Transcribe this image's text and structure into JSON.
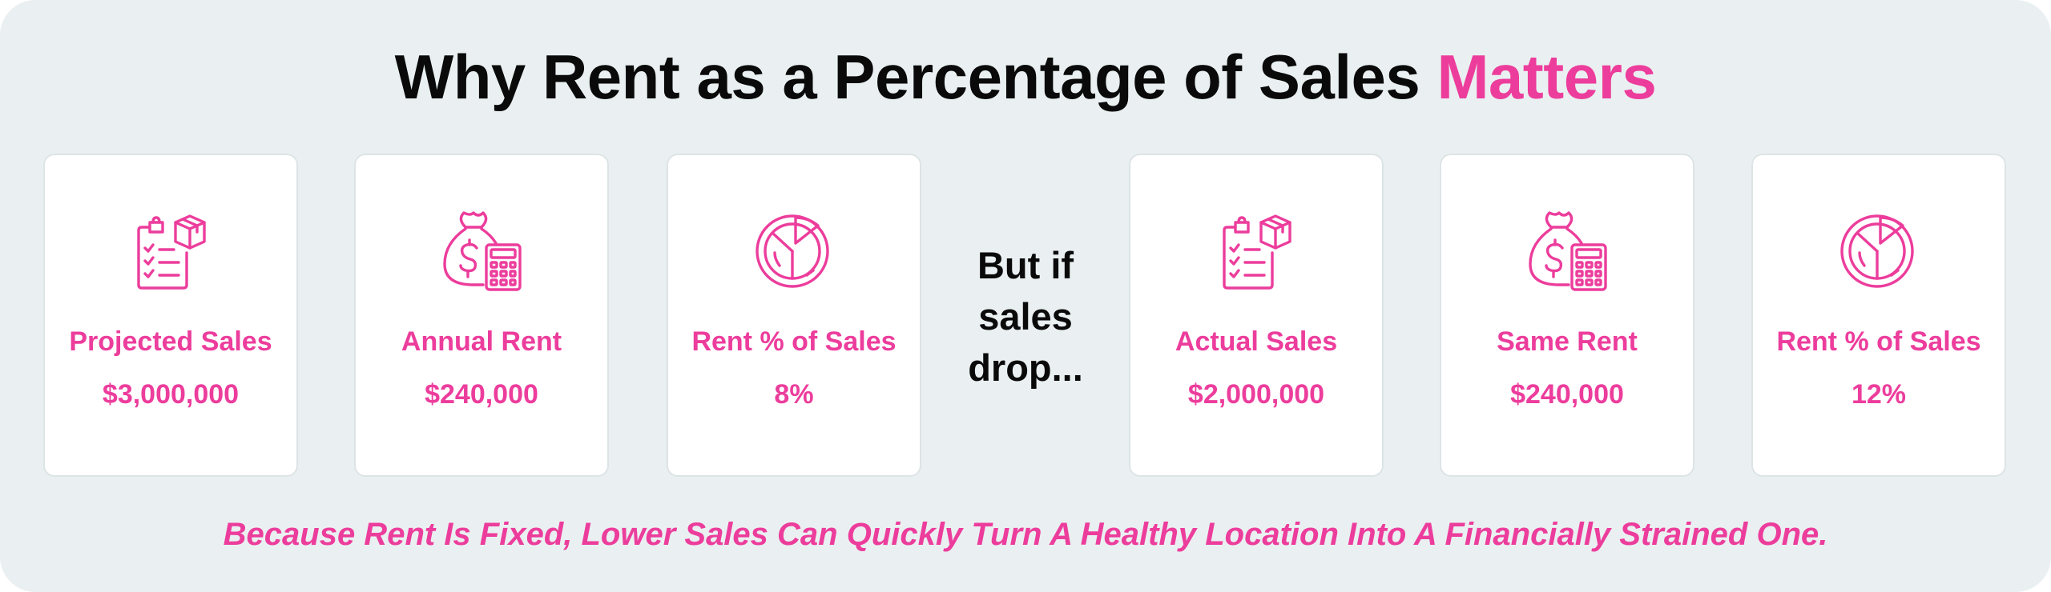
{
  "title": {
    "main": "Why Rent as a Percentage of Sales ",
    "accent": "Matters"
  },
  "accent_color": "#ec3d9c",
  "cards": [
    {
      "icon": "clipboard-box-icon",
      "label": "Projected Sales",
      "value": "$3,000,000"
    },
    {
      "icon": "money-bag-calculator-icon",
      "label": "Annual Rent",
      "value": "$240,000"
    },
    {
      "icon": "pie-chart-icon",
      "label": "Rent % of Sales",
      "value": "8%"
    },
    {
      "icon": "clipboard-box-icon",
      "label": "Actual Sales",
      "value": "$2,000,000"
    },
    {
      "icon": "money-bag-calculator-icon",
      "label": "Same Rent",
      "value": "$240,000"
    },
    {
      "icon": "pie-chart-icon",
      "label": "Rent % of Sales",
      "value": "12%"
    }
  ],
  "middle": {
    "line1": "But if",
    "line2": "sales",
    "line3": "drop..."
  },
  "footer": "Because Rent Is Fixed, Lower Sales Can Quickly Turn A Healthy Location Into A Financially Strained One."
}
